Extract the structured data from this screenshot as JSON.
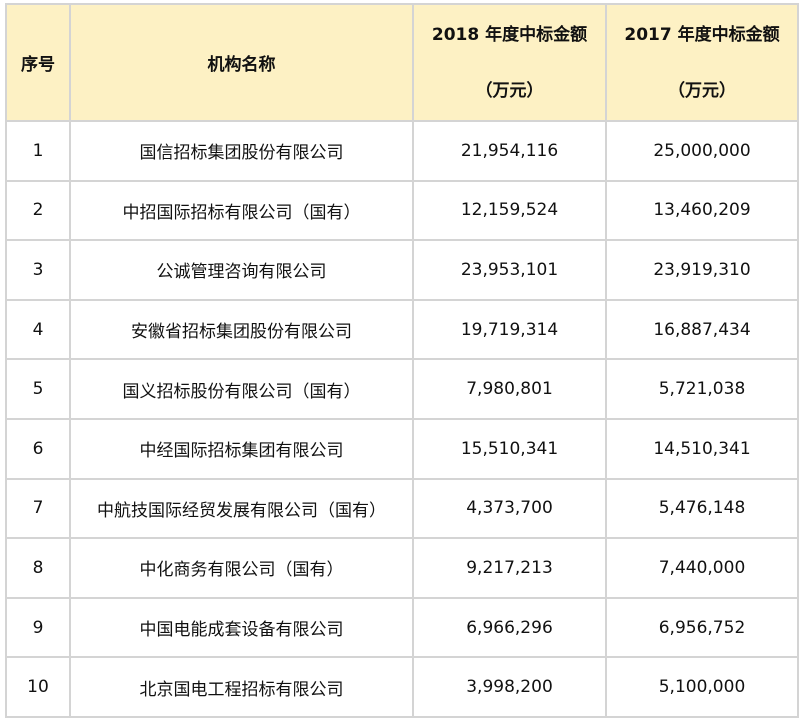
{
  "table": {
    "headers": {
      "index": "序号",
      "name": "机构名称",
      "amount_2018": "2018 年度中标金额",
      "amount_2017": "2017 年度中标金额",
      "unit": "（万元）"
    },
    "rows": [
      {
        "no": "1",
        "name": "国信招标集团股份有限公司",
        "y2018": "21,954,116",
        "y2017": "25,000,000"
      },
      {
        "no": "2",
        "name": "中招国际招标有限公司（国有）",
        "y2018": "12,159,524",
        "y2017": "13,460,209"
      },
      {
        "no": "3",
        "name": "公诚管理咨询有限公司",
        "y2018": "23,953,101",
        "y2017": "23,919,310"
      },
      {
        "no": "4",
        "name": "安徽省招标集团股份有限公司",
        "y2018": "19,719,314",
        "y2017": "16,887,434"
      },
      {
        "no": "5",
        "name": "国义招标股份有限公司（国有）",
        "y2018": "7,980,801",
        "y2017": "5,721,038"
      },
      {
        "no": "6",
        "name": "中经国际招标集团有限公司",
        "y2018": "15,510,341",
        "y2017": "14,510,341"
      },
      {
        "no": "7",
        "name": "中航技国际经贸发展有限公司（国有）",
        "y2018": "4,373,700",
        "y2017": "5,476,148"
      },
      {
        "no": "8",
        "name": "中化商务有限公司（国有）",
        "y2018": "9,217,213",
        "y2017": "7,440,000"
      },
      {
        "no": "9",
        "name": "中国电能成套设备有限公司",
        "y2018": "6,966,296",
        "y2017": "6,956,752"
      },
      {
        "no": "10",
        "name": "北京国电工程招标有限公司",
        "y2018": "3,998,200",
        "y2017": "5,100,000"
      }
    ]
  },
  "colors": {
    "header_bg": "#fdf1c4",
    "grid": "#d4d4d4"
  }
}
